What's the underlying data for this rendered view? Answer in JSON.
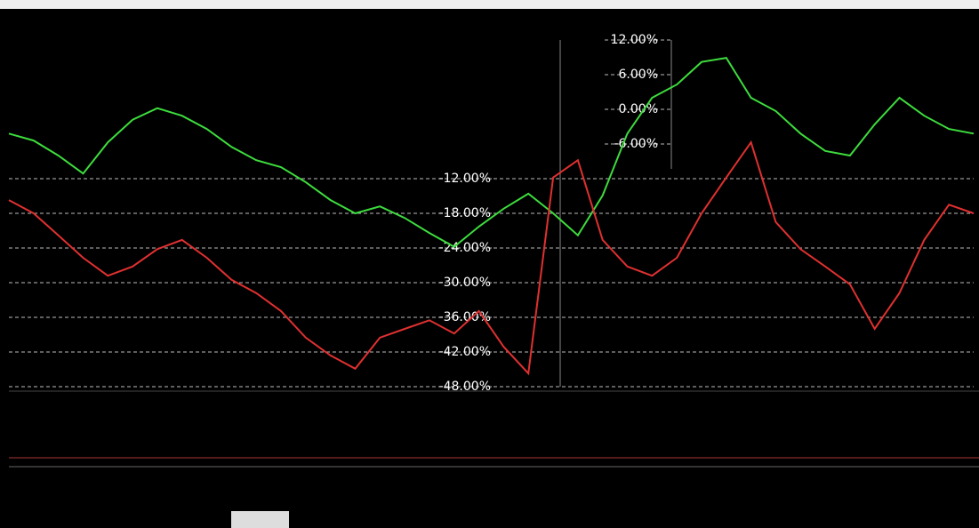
{
  "chart_data": {
    "type": "line",
    "categories": [
      null,
      null,
      null,
      null,
      null,
      null,
      null,
      null,
      null,
      null,
      null,
      null,
      null,
      null,
      null,
      null,
      null,
      null,
      null,
      null,
      null,
      null,
      null,
      null,
      null,
      null,
      null,
      null,
      null,
      null,
      null,
      null,
      null,
      null,
      null,
      null,
      null,
      null,
      null,
      null
    ],
    "series": [
      {
        "color": "#3ddc3d",
        "values": [
          -4.2,
          -5.4,
          -8.0,
          -11.1,
          -5.7,
          -1.8,
          0.2,
          -1.1,
          -3.4,
          -6.5,
          -8.8,
          -10.0,
          -12.6,
          -15.7,
          -18.0,
          -16.8,
          -18.8,
          -21.4,
          -23.8,
          -20.3,
          -17.2,
          -14.6,
          -18.0,
          -21.8,
          -14.9,
          -4.2,
          2.0,
          4.3,
          8.2,
          8.9,
          2.0,
          -0.3,
          -4.2,
          -7.2,
          -8.0,
          -2.6,
          2.0,
          -1.1,
          -3.4,
          -4.2
        ]
      },
      {
        "color": "#e03030",
        "values": [
          -15.7,
          -18.0,
          -21.8,
          -25.7,
          -28.8,
          -27.2,
          -24.2,
          -22.6,
          -25.7,
          -29.5,
          -31.8,
          -34.9,
          -39.5,
          -42.6,
          -44.9,
          -39.5,
          -38.0,
          -36.5,
          -38.8,
          -34.9,
          -41.1,
          -45.7,
          -11.8,
          -8.8,
          -22.6,
          -27.2,
          -28.8,
          -25.7,
          -18.0,
          -11.8,
          -5.7,
          -19.5,
          -24.2,
          -27.2,
          -30.3,
          -38.0,
          -31.8,
          -22.6,
          -16.5,
          -18.0
        ]
      }
    ],
    "ylim": [
      -48,
      12
    ],
    "yticks": [
      {
        "value": 12,
        "label": "12.00%"
      },
      {
        "value": 6,
        "label": "6.00%"
      },
      {
        "value": 0,
        "label": "0.00%"
      },
      {
        "value": -6,
        "label": "-6.00%"
      },
      {
        "value": -12,
        "label": "-12.00%"
      },
      {
        "value": -18,
        "label": "-18.00%"
      },
      {
        "value": -24,
        "label": "-24.00%"
      },
      {
        "value": -30,
        "label": "-30.00%"
      },
      {
        "value": -36,
        "label": "-36.00%"
      },
      {
        "value": -42,
        "label": "-42.00%"
      },
      {
        "value": -48,
        "label": "-48.00%"
      }
    ],
    "grid": true
  }
}
